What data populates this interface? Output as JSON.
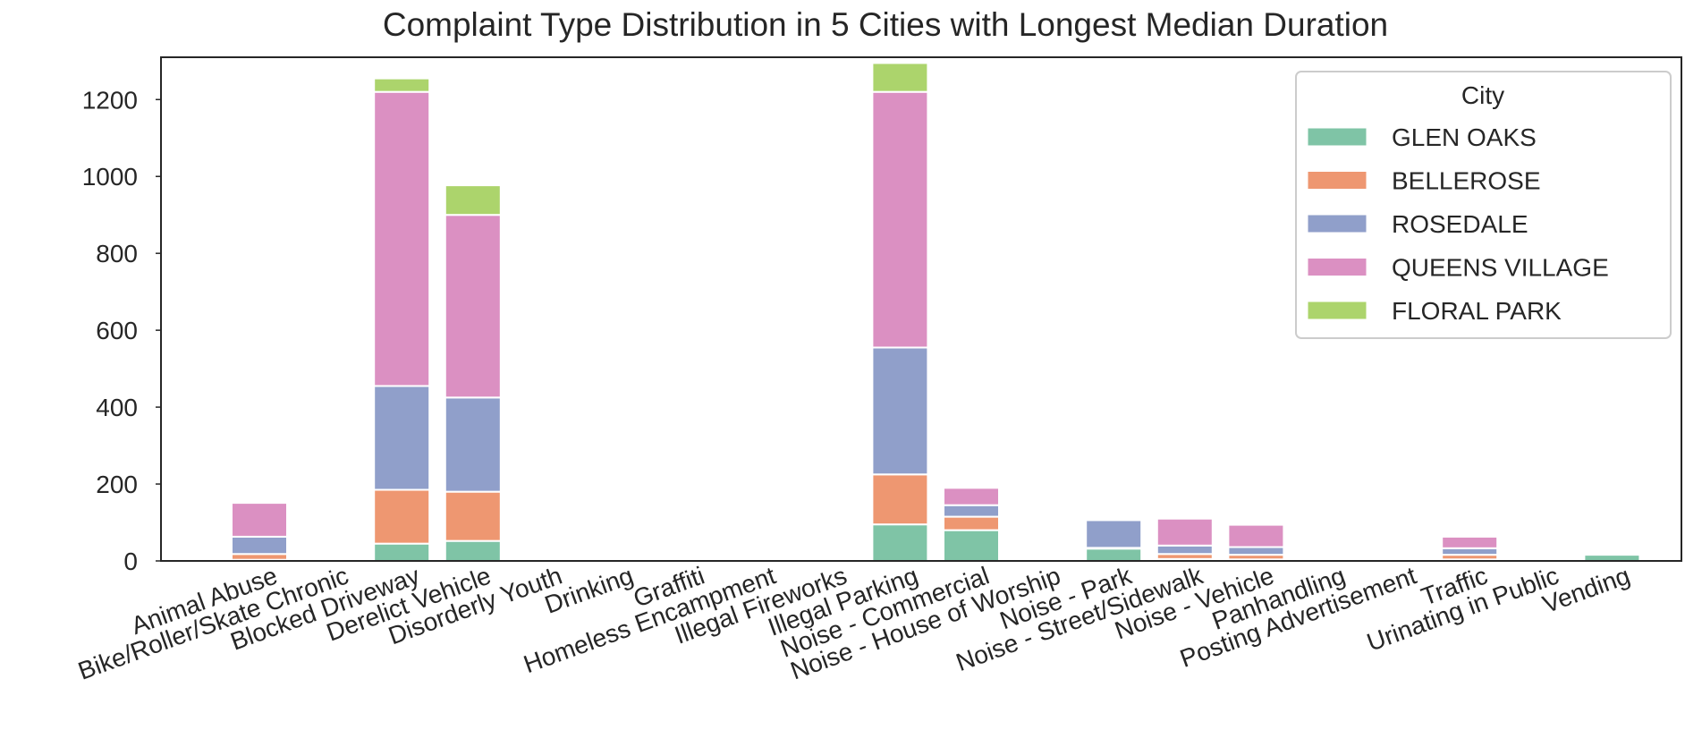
{
  "chart_data": {
    "type": "bar",
    "stacked": true,
    "title": "Complaint Type Distribution in 5 Cities with Longest Median Duration",
    "xlabel": "",
    "ylabel": "",
    "ylim": [
      0,
      1310
    ],
    "yticks": [
      0,
      200,
      400,
      600,
      800,
      1000,
      1200
    ],
    "grid": false,
    "legend": {
      "title": "City",
      "position": "top-right"
    },
    "categories": [
      "Animal Abuse",
      "Bike/Roller/Skate Chronic",
      "Blocked Driveway",
      "Derelict Vehicle",
      "Disorderly Youth",
      "Drinking",
      "Graffiti",
      "Homeless Encampment",
      "Illegal Fireworks",
      "Illegal Parking",
      "Noise - Commercial",
      "Noise - House of Worship",
      "Noise - Park",
      "Noise - Street/Sidewalk",
      "Noise - Vehicle",
      "Panhandling",
      "Posting Advertisement",
      "Traffic",
      "Urinating in Public",
      "Vending"
    ],
    "series": [
      {
        "name": "GLEN OAKS",
        "color": "#7fc4a6",
        "values": [
          3,
          0,
          45,
          52,
          0,
          0,
          0,
          0,
          0,
          95,
          80,
          0,
          32,
          5,
          4,
          0,
          0,
          4,
          0,
          16
        ]
      },
      {
        "name": "BELLEROSE",
        "color": "#ee9771",
        "values": [
          15,
          0,
          140,
          128,
          0,
          0,
          0,
          0,
          0,
          130,
          35,
          0,
          2,
          13,
          12,
          0,
          0,
          12,
          0,
          0
        ]
      },
      {
        "name": "ROSEDALE",
        "color": "#909fca",
        "values": [
          45,
          0,
          270,
          245,
          0,
          0,
          0,
          0,
          0,
          330,
          30,
          0,
          72,
          22,
          20,
          0,
          0,
          17,
          0,
          0
        ]
      },
      {
        "name": "QUEENS VILLAGE",
        "color": "#db90c2",
        "values": [
          88,
          0,
          765,
          475,
          0,
          0,
          0,
          0,
          0,
          665,
          45,
          0,
          0,
          70,
          58,
          0,
          0,
          30,
          0,
          0
        ]
      },
      {
        "name": "FLORAL PARK",
        "color": "#acd46c",
        "values": [
          0,
          0,
          35,
          77,
          0,
          0,
          0,
          0,
          0,
          75,
          0,
          0,
          0,
          0,
          0,
          0,
          0,
          0,
          0,
          0
        ]
      }
    ]
  }
}
